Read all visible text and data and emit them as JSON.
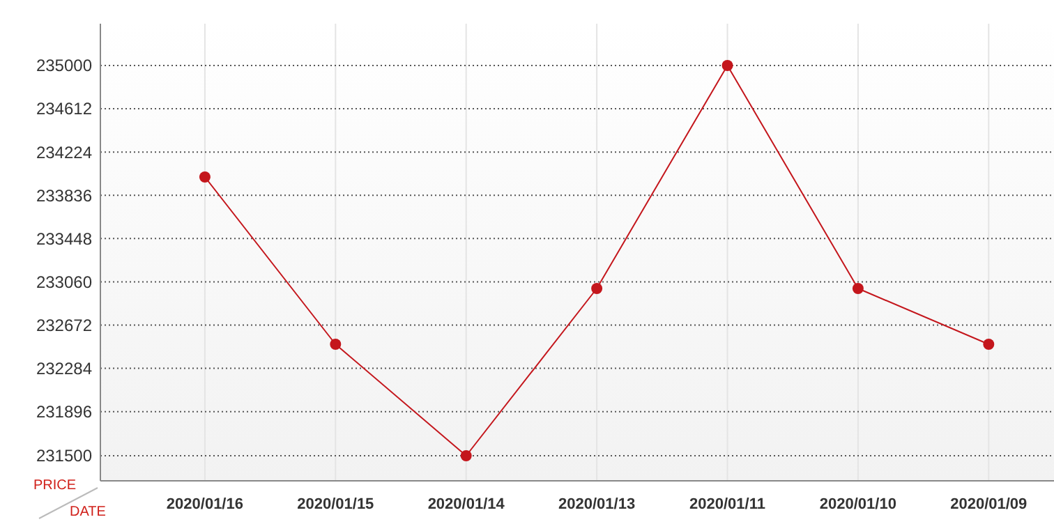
{
  "chart_data": {
    "type": "line",
    "xlabel": "DATE",
    "ylabel": "PRICE",
    "categories": [
      "2020/01/16",
      "2020/01/15",
      "2020/01/14",
      "2020/01/13",
      "2020/01/11",
      "2020/01/10",
      "2020/01/09"
    ],
    "series": [
      {
        "color": "#c4161c",
        "values": [
          234000,
          232500,
          231500,
          233000,
          235000,
          233000,
          232500
        ]
      }
    ],
    "ylim": [
      231275,
      235375
    ],
    "yticks": [
      231500,
      231896,
      232284,
      232672,
      233060,
      233448,
      233836,
      234224,
      234612,
      235000
    ],
    "grid": true,
    "marker": "circle",
    "line_style": "solid"
  }
}
